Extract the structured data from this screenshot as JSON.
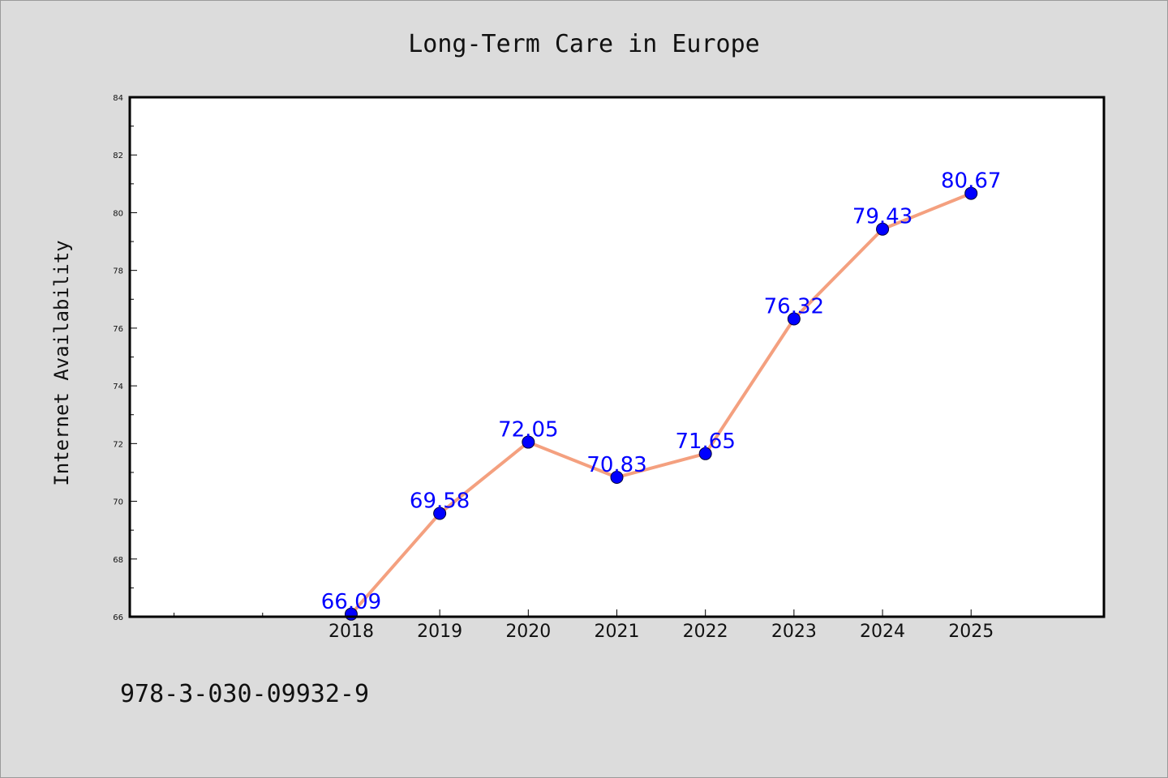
{
  "chart_data": {
    "type": "line",
    "title": "Long-Term Care in Europe",
    "ylabel": "Internet Availability",
    "xlabel": "",
    "x": [
      2018,
      2019,
      2020,
      2021,
      2022,
      2023,
      2024,
      2025
    ],
    "x_tick_labels": [
      "2018",
      "2019",
      "2020",
      "2021",
      "2022",
      "2023",
      "2024",
      "2025"
    ],
    "x_range": [
      2015.5,
      2026.5
    ],
    "series": [
      {
        "values": [
          66.09,
          69.58,
          72.05,
          70.83,
          71.65,
          76.32,
          79.43,
          80.67
        ]
      }
    ],
    "data_labels": [
      "66.09",
      "69.58",
      "72.05",
      "70.83",
      "71.65",
      "76.32",
      "79.43",
      "80.67"
    ],
    "ylim": [
      66,
      84
    ],
    "y_ticks": [
      66,
      68,
      70,
      72,
      74,
      76,
      78,
      80,
      82,
      84
    ],
    "y_tick_labels": [
      "66",
      "68",
      "70",
      "72",
      "74",
      "76",
      "78",
      "80",
      "82",
      "84"
    ],
    "grid": false,
    "legend": "none",
    "colors": {
      "line": "#f4a07f",
      "marker": "#0000ff",
      "data_label": "#0000ff",
      "plot_background": "#ffffff",
      "page_background": "#dcdcdc"
    }
  },
  "footer": {
    "isbn": "978-3-030-09932-9"
  }
}
